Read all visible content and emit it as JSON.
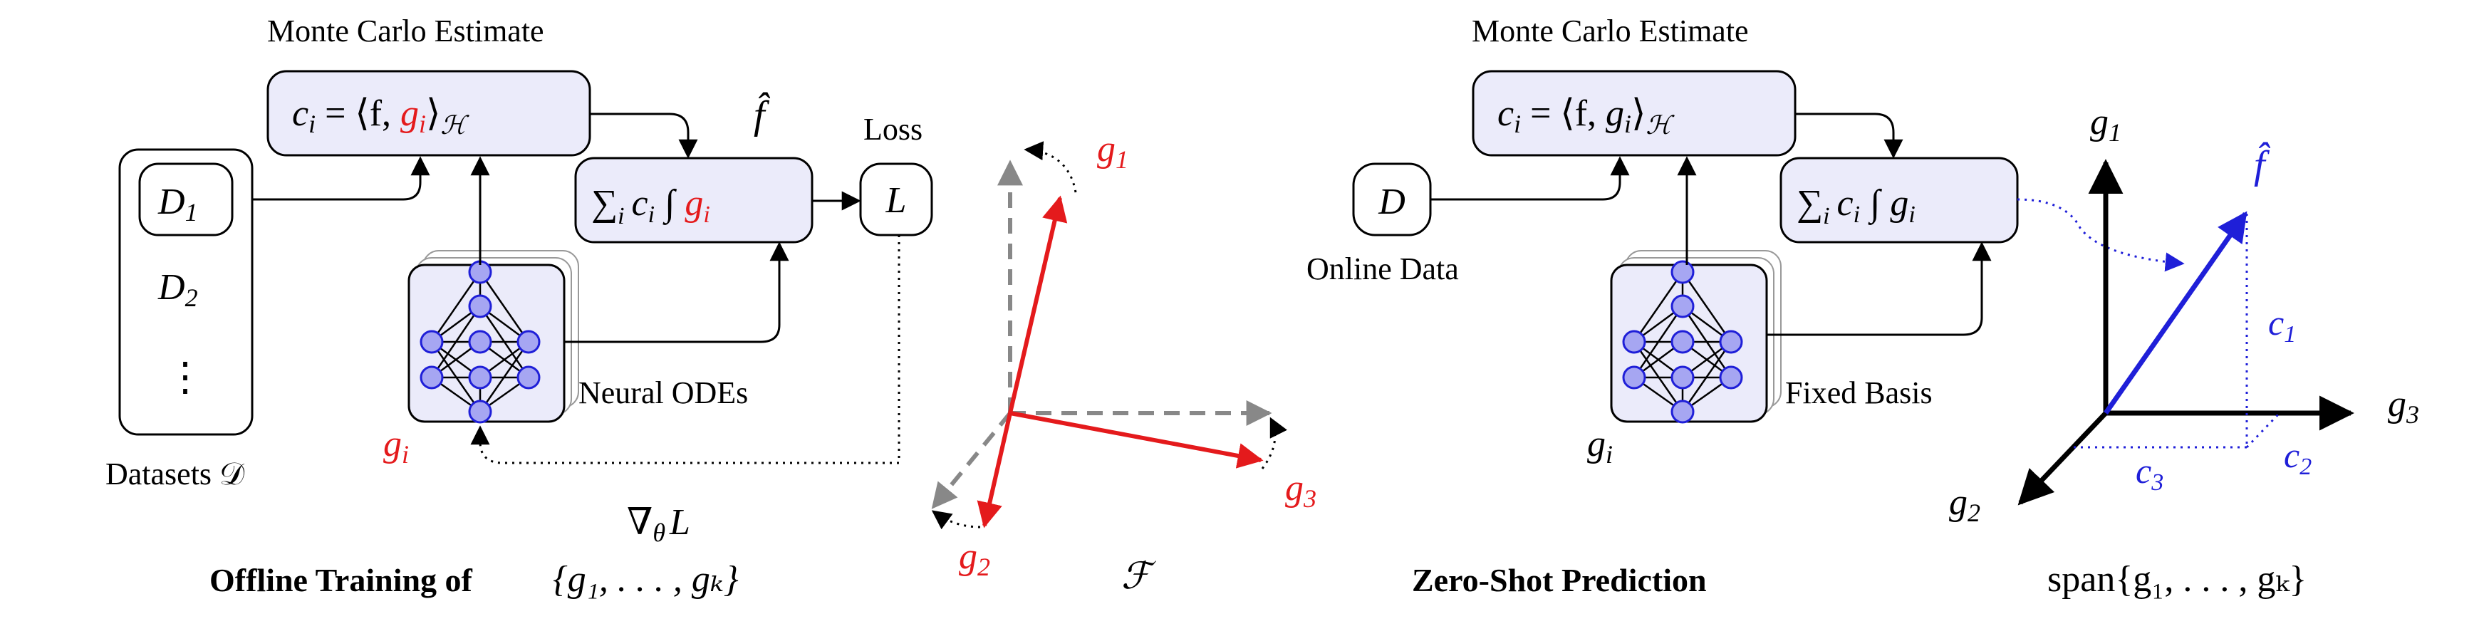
{
  "left_panel": {
    "top_label": "Monte Carlo Estimate",
    "coef_expr": {
      "pre": "c",
      "sub": "i",
      "mid": " = ⟨f, ",
      "g": "g",
      "gsub": "i",
      "post": "⟩",
      "hsub": "ℋ"
    },
    "fhat": "f̂",
    "sum_expr": {
      "sum": "∑",
      "sub": "i",
      "c": "c",
      "csub": "i",
      "int": "∫",
      "g": "g",
      "gsub": "i"
    },
    "loss_label": "Loss",
    "loss_symbol": "L",
    "dataset_items": [
      {
        "base": "D",
        "sub": "1"
      },
      {
        "base": "D",
        "sub": "2"
      },
      {
        "base": "⋮",
        "sub": ""
      }
    ],
    "datasets_label": "Datasets 𝒟",
    "network_label": "Neural ODEs",
    "gi_label": {
      "base": "g",
      "sub": "i"
    },
    "grad_label": {
      "nabla": "∇",
      "sub": "θ",
      "L": "L"
    },
    "caption": "Offline Training of",
    "caption_set": "{g₁, . . . , gₖ}"
  },
  "left_axes": {
    "g1": {
      "base": "g",
      "sub": "1"
    },
    "g2": {
      "base": "g",
      "sub": "2"
    },
    "g3": {
      "base": "g",
      "sub": "3"
    },
    "space_label": "ℱ"
  },
  "right_panel": {
    "top_label": "Monte Carlo Estimate",
    "coef_expr": {
      "pre": "c",
      "sub": "i",
      "mid": " = ⟨f, ",
      "g": "g",
      "gsub": "i",
      "post": "⟩",
      "hsub": "ℋ"
    },
    "sum_expr": {
      "sum": "∑",
      "sub": "i",
      "c": "c",
      "csub": "i",
      "int": "∫",
      "g": "g",
      "gsub": "i"
    },
    "data_symbol": "D",
    "data_label": "Online Data",
    "network_label": "Fixed Basis",
    "gi_label": {
      "base": "g",
      "sub": "i"
    },
    "caption": "Zero-Shot Prediction",
    "caption_set": "span{g₁, . . . , gₖ}"
  },
  "right_axes": {
    "g1": {
      "base": "g",
      "sub": "1"
    },
    "g2": {
      "base": "g",
      "sub": "2"
    },
    "g3": {
      "base": "g",
      "sub": "3"
    },
    "fhat": "f̂",
    "c1": {
      "base": "c",
      "sub": "1"
    },
    "c2": {
      "base": "c",
      "sub": "2"
    },
    "c3": {
      "base": "c",
      "sub": "3"
    }
  },
  "colors": {
    "red": "#e41a1c",
    "blue": "#1f1fd8",
    "box_fill": "#ebebfa",
    "node_fill": "#a6a6f2",
    "gray": "#888888"
  }
}
